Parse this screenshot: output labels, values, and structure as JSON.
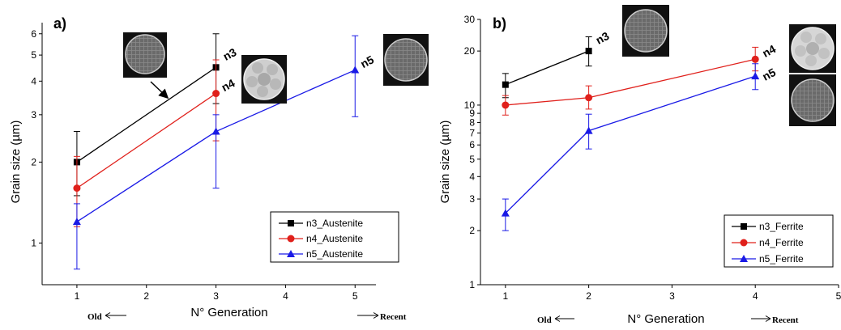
{
  "colors": {
    "n3": "#000000",
    "n4": "#e0201b",
    "n5": "#1a1ae6"
  },
  "chart_data": [
    {
      "type": "line",
      "panel_label": "a)",
      "xlabel": "N° Generation",
      "ylabel": "Grain size (µm)",
      "x_note_left": "Old",
      "x_note_right": "Recent",
      "xlim": [
        0.5,
        5.3
      ],
      "ylim": [
        0.7,
        6.6
      ],
      "yscale": "log",
      "xticks": [
        1,
        2,
        3,
        4,
        5
      ],
      "yticks": [
        1,
        2,
        3,
        4,
        5,
        6
      ],
      "grid": false,
      "legend": "bottom-right",
      "series": [
        {
          "name": "n3_Austenite",
          "label": "n3",
          "marker": "square",
          "color": "#000000",
          "x": [
            1,
            3
          ],
          "y": [
            2.0,
            4.5
          ],
          "err_low": [
            1.5,
            3.3
          ],
          "err_high": [
            2.6,
            6.0
          ]
        },
        {
          "name": "n4_Austenite",
          "label": "n4",
          "marker": "circle",
          "color": "#e0201b",
          "x": [
            1,
            3
          ],
          "y": [
            1.6,
            3.6
          ],
          "err_low": [
            1.15,
            2.4
          ],
          "err_high": [
            2.1,
            4.8
          ]
        },
        {
          "name": "n5_Austenite",
          "label": "n5",
          "marker": "triangle",
          "color": "#1a1ae6",
          "x": [
            1,
            3,
            5
          ],
          "y": [
            1.2,
            2.6,
            4.4
          ],
          "err_low": [
            0.8,
            1.6,
            2.95
          ],
          "err_high": [
            1.4,
            3.0,
            5.9
          ]
        }
      ]
    },
    {
      "type": "line",
      "panel_label": "b)",
      "xlabel": "N° Generation",
      "ylabel": "Grain size (µm)",
      "x_note_left": "Old",
      "x_note_right": "Recent",
      "xlim": [
        0.7,
        5.0
      ],
      "ylim": [
        1,
        30
      ],
      "yscale": "log",
      "xticks": [
        1,
        2,
        3,
        4,
        5
      ],
      "yticks": [
        1,
        2,
        3,
        4,
        5,
        6,
        7,
        8,
        9,
        10,
        20,
        30
      ],
      "grid": false,
      "legend": "bottom-right",
      "series": [
        {
          "name": "n3_Ferrite",
          "label": "n3",
          "marker": "square",
          "color": "#000000",
          "x": [
            1,
            2
          ],
          "y": [
            13.0,
            20.0
          ],
          "err_low": [
            11.0,
            16.5
          ],
          "err_high": [
            15.0,
            24.0
          ]
        },
        {
          "name": "n4_Ferrite",
          "label": "n4",
          "marker": "circle",
          "color": "#e0201b",
          "x": [
            1,
            2,
            4
          ],
          "y": [
            10.0,
            11.0,
            18.0
          ],
          "err_low": [
            8.8,
            9.5,
            15.5
          ],
          "err_high": [
            11.3,
            12.8,
            21.0
          ]
        },
        {
          "name": "n5_Ferrite",
          "label": "n5",
          "marker": "triangle",
          "color": "#1a1ae6",
          "x": [
            1,
            2,
            4
          ],
          "y": [
            2.5,
            7.2,
            14.5
          ],
          "err_low": [
            2.0,
            5.7,
            12.2
          ],
          "err_high": [
            3.0,
            8.9,
            17.0
          ]
        }
      ]
    }
  ]
}
